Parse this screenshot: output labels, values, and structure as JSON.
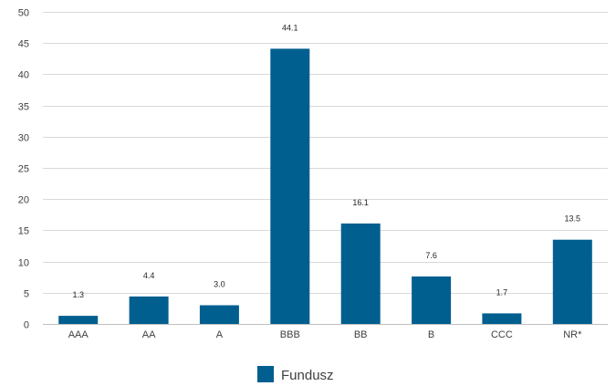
{
  "chart_data": {
    "type": "bar",
    "categories": [
      "AAA",
      "AA",
      "A",
      "BBB",
      "BB",
      "B",
      "CCC",
      "NR*"
    ],
    "series": [
      {
        "name": "Fundusz",
        "values": [
          1.3,
          4.4,
          3.0,
          44.1,
          16.1,
          7.6,
          1.7,
          13.5
        ],
        "data_labels": [
          "1.3",
          "4.4",
          "3.0",
          "44.1",
          "16.1",
          "7.6",
          "1.7",
          "13.5"
        ],
        "color": "#005f8f"
      }
    ],
    "title": "",
    "xlabel": "",
    "ylabel": "",
    "ylim": [
      0,
      50
    ],
    "yticks": [
      0,
      5,
      10,
      15,
      20,
      25,
      30,
      35,
      40,
      45,
      50
    ],
    "ytick_labels": [
      "0",
      "5",
      "10",
      "15",
      "20",
      "25",
      "30",
      "35",
      "40",
      "45",
      "50"
    ],
    "grid": true,
    "legend_position": "bottom-center",
    "colors": {
      "bar": "#005f8f",
      "grid": "#d9d9d9",
      "axis": "#bfbfbf",
      "text": "#404040"
    }
  }
}
